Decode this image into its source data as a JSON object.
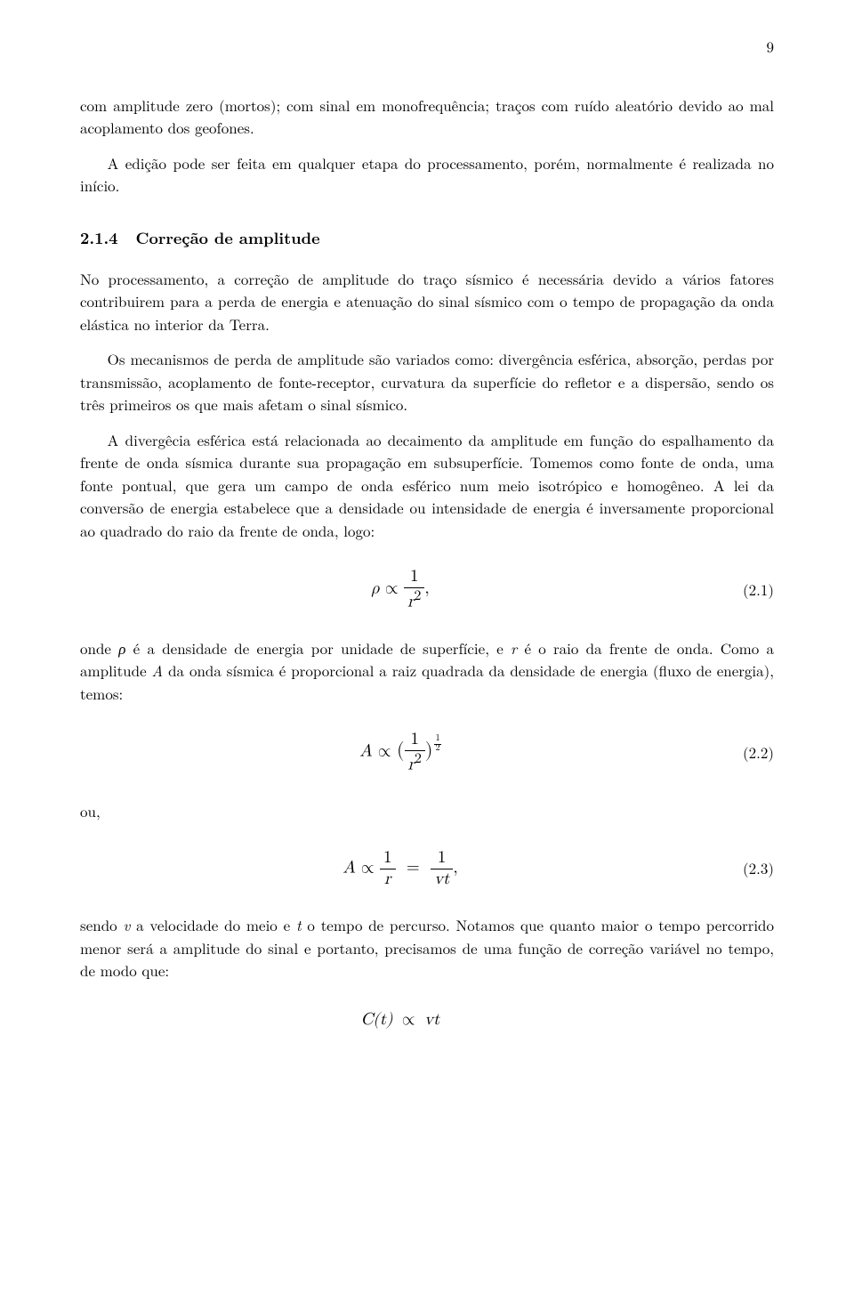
{
  "pageNumber": "9",
  "para1": "com amplitude zero (mortos); com sinal em monofrequência; traços com ruído aleatório devido ao mal acoplamento dos geofones.",
  "para2": "A edição pode ser feita em qualquer etapa do processamento, porém, normalmente é realizada no início.",
  "sectionNumber": "2.1.4",
  "sectionTitle": "Correção de amplitude",
  "para3": "No processamento, a correção de amplitude do traço sísmico é necessária devido a vários fatores contribuirem para a perda de energia e atenuação do sinal sísmico com o tempo de propagação da onda elástica no interior da Terra.",
  "para4": "Os mecanismos de perda de amplitude são variados como: divergência esférica, absorção, perdas por transmissão, acoplamento de fonte-receptor, curvatura da superfície do refletor e a dispersão, sendo os três primeiros os que mais afetam o sinal sísmico.",
  "para5": "A divergêcia esférica está relacionada ao decaimento da amplitude em função do espalhamento da frente de onda sísmica durante sua propagação em subsuperfície. Tomemos como fonte de onda, uma fonte pontual, que gera um campo de onda esférico num meio isotrópico e homogêneo. A lei da conversão de energia estabelece que a densidade ou intensidade de energia é inversamente proporcional ao quadrado do raio da frente de onda, logo:",
  "eq1Label": "(2.1)",
  "para6a": "onde ",
  "para6b": " é a densidade de energia por unidade de superfície, e ",
  "para6c": " é o raio da frente de onda. Como a amplitude ",
  "para6d": " da onda sísmica é proporcional a raiz quadrada da densidade de energia (fluxo de energia), temos:",
  "eq2Label": "(2.2)",
  "ouText": "ou,",
  "eq3Label": "(2.3)",
  "para7a": "sendo ",
  "para7b": " a velocidade do meio e ",
  "para7c": " o tempo de percurso. Notamos que quanto maior o tempo percorrido menor será a amplitude do sinal e portanto, precisamos de uma função de correção variável no tempo, de modo que:",
  "sym": {
    "rho": "ρ",
    "r": "r",
    "A": "A",
    "v": "v",
    "t": "t",
    "propto": "∝",
    "one": "1",
    "r2": "r",
    "two": "2",
    "vt": "vt",
    "Ct": "C(t)",
    "eq": "="
  }
}
